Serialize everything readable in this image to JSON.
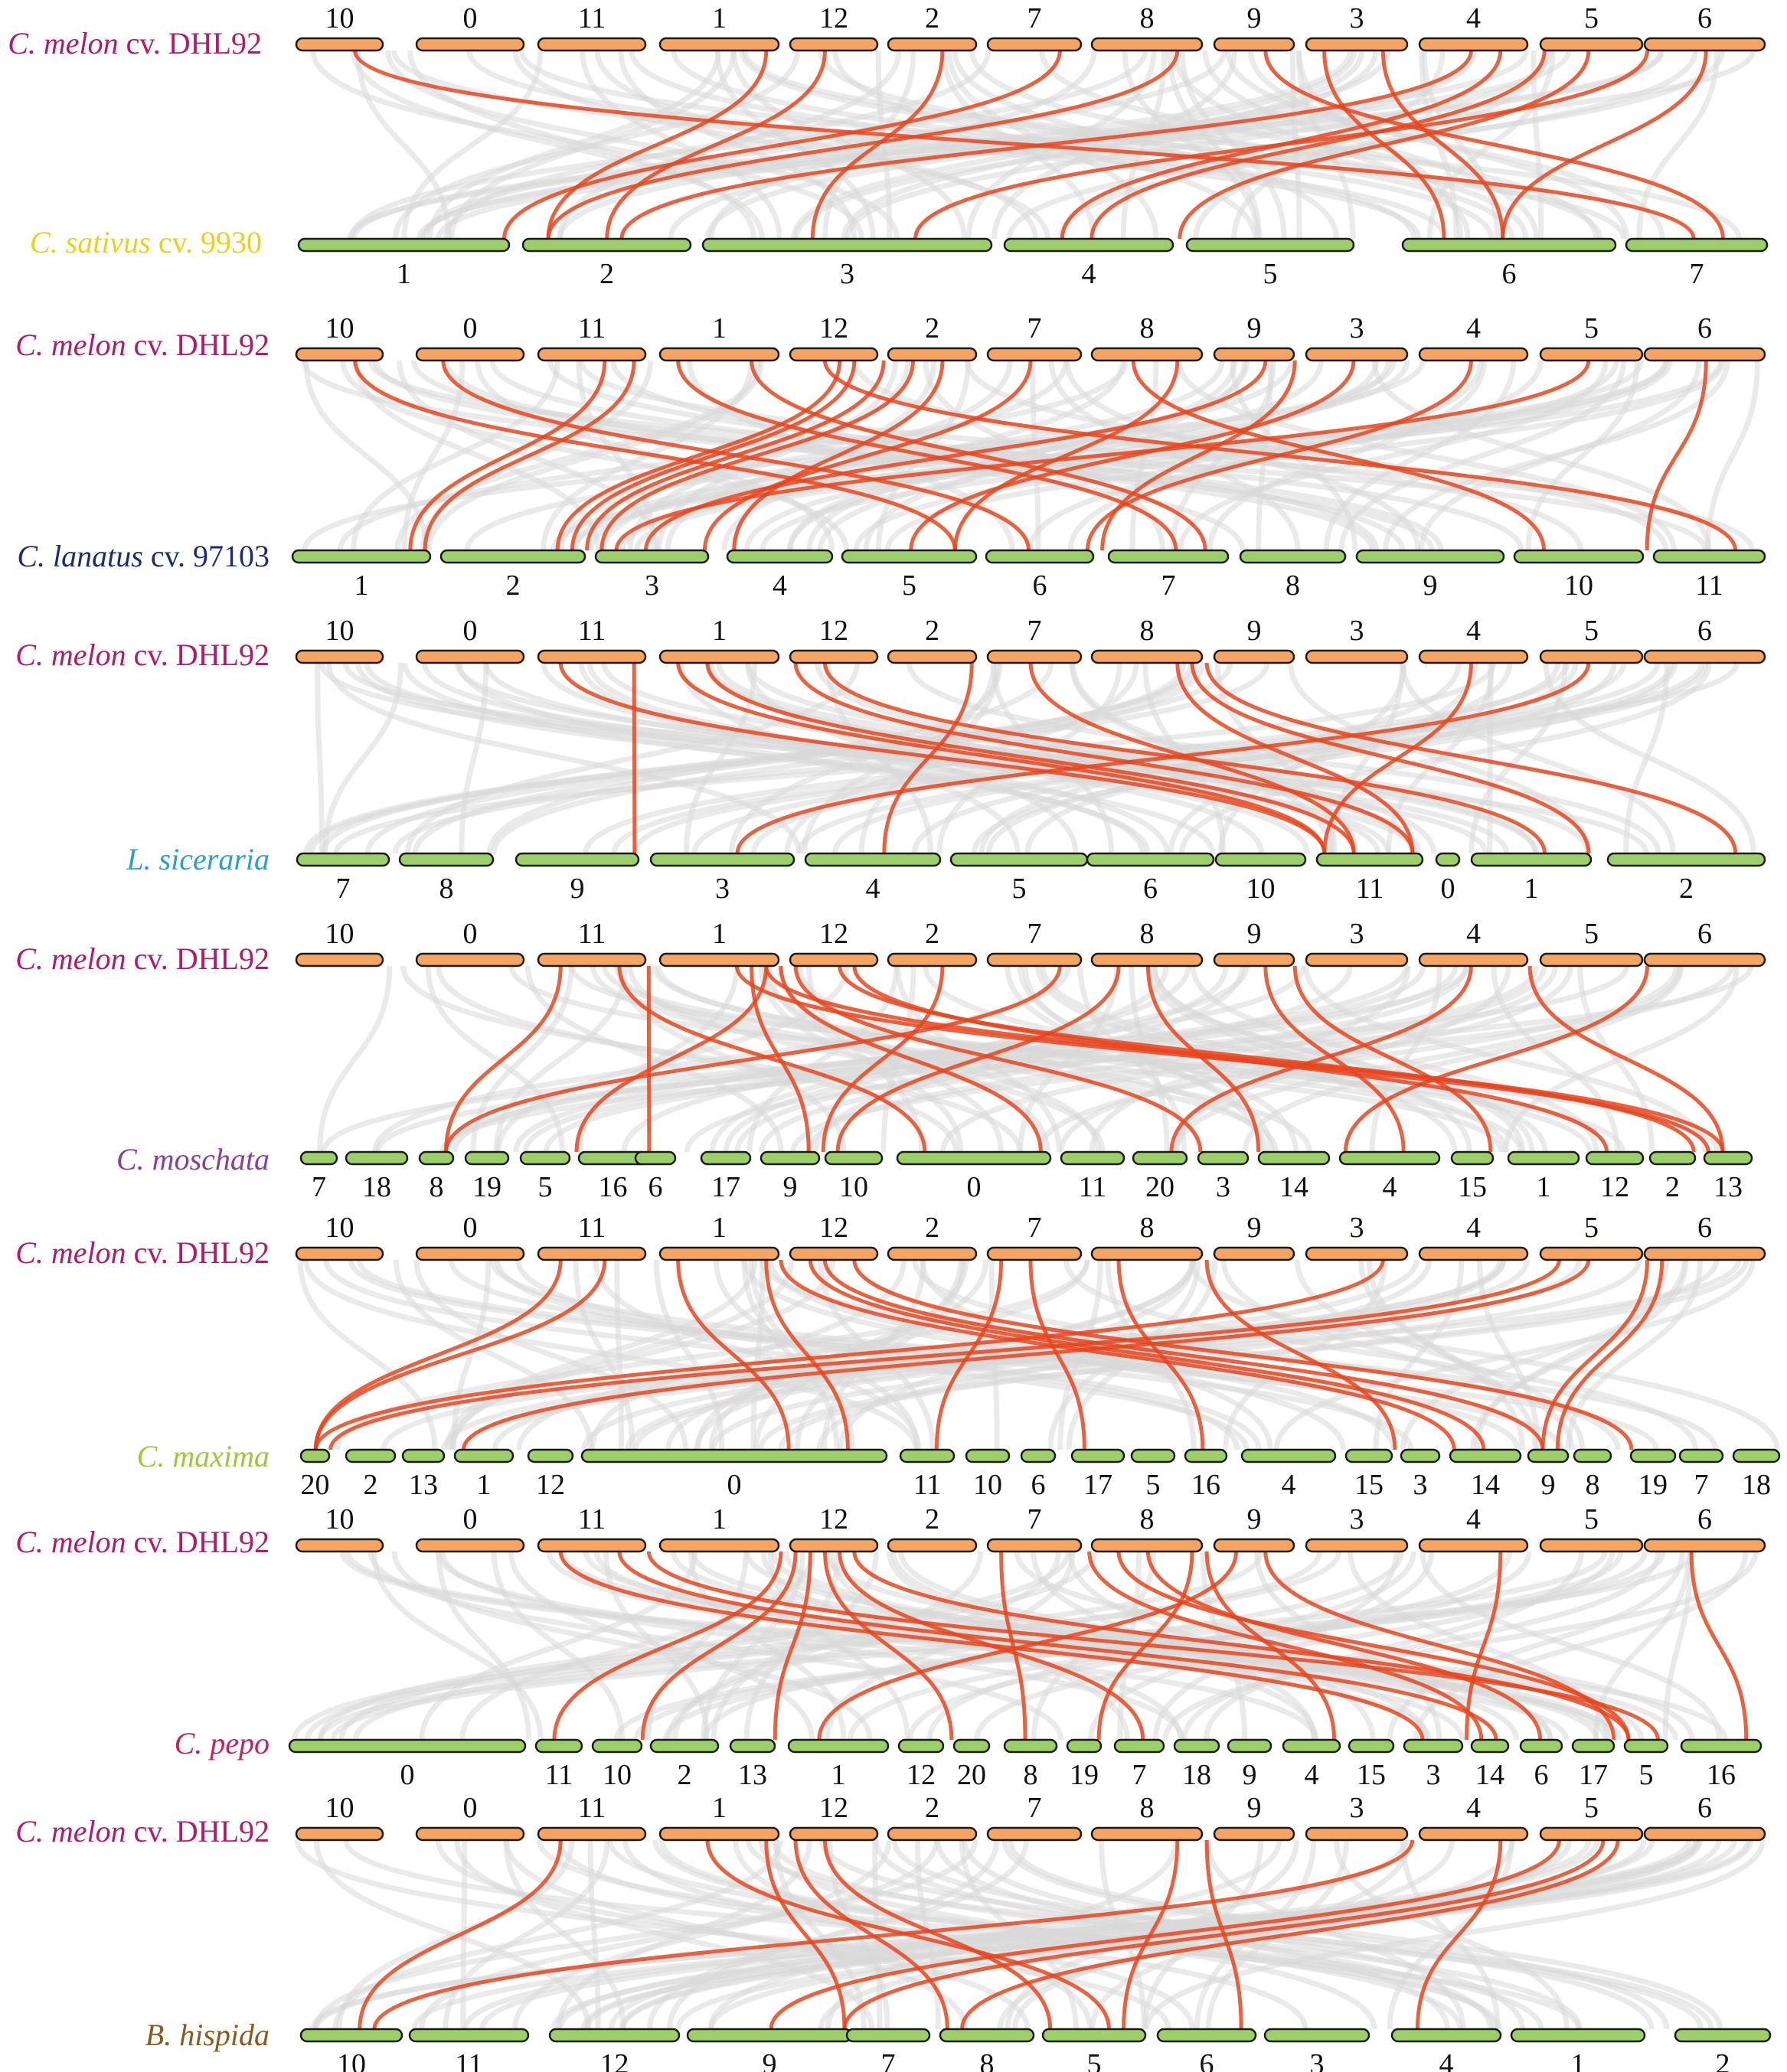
{
  "colors": {
    "melon_chrom": "#f5a462",
    "target_chrom": "#9ccf6a",
    "outline": "#1a1a1a",
    "red_link": "#e8441d",
    "grey_link": "#d9d9d9"
  },
  "panels": [
    {
      "top": {
        "italic": "C. melon",
        "rest": " cv. DHL92",
        "color": "#b5196a",
        "chroms": [
          "10",
          "0",
          "11",
          "1",
          "12",
          "2",
          "7",
          "8",
          "9",
          "3",
          "4",
          "5",
          "6"
        ]
      },
      "bottom": {
        "italic": "C. sativus",
        "rest": " cv. 9930",
        "color": "#e8d21c",
        "chroms": [
          "1",
          "2",
          "3",
          "4",
          "5",
          "6",
          "7"
        ]
      }
    },
    {
      "top": {
        "italic": "C. melon",
        "rest": " cv. DHL92",
        "color": "#b5196a",
        "chroms": [
          "10",
          "0",
          "11",
          "1",
          "12",
          "2",
          "7",
          "8",
          "9",
          "3",
          "4",
          "5",
          "6"
        ]
      },
      "bottom": {
        "italic": "C. lanatus",
        "rest": " cv. 97103",
        "color": "#1d2a7a",
        "chroms": [
          "1",
          "2",
          "3",
          "4",
          "5",
          "6",
          "7",
          "8",
          "9",
          "10",
          "11"
        ]
      }
    },
    {
      "top": {
        "italic": "C. melon",
        "rest": " cv. DHL92",
        "color": "#b5196a",
        "chroms": [
          "10",
          "0",
          "11",
          "1",
          "12",
          "2",
          "7",
          "8",
          "9",
          "3",
          "4",
          "5",
          "6"
        ]
      },
      "bottom": {
        "italic": "L. siceraria",
        "rest": "",
        "color": "#2a9fd0",
        "chroms": [
          "7",
          "8",
          "9",
          "3",
          "4",
          "5",
          "6",
          "10",
          "11",
          "0",
          "1",
          "2"
        ]
      }
    },
    {
      "top": {
        "italic": "C. melon",
        "rest": " cv. DHL92",
        "color": "#b5196a",
        "chroms": [
          "10",
          "0",
          "11",
          "1",
          "12",
          "2",
          "7",
          "8",
          "9",
          "3",
          "4",
          "5",
          "6"
        ]
      },
      "bottom": {
        "italic": "C. moschata",
        "rest": "",
        "color": "#8a3ea0",
        "chroms": [
          "7",
          "18",
          "8",
          "19",
          "5",
          "16",
          "6",
          "17",
          "9",
          "10",
          "0",
          "11",
          "20",
          "3",
          "14",
          "4",
          "15",
          "1",
          "12",
          "2",
          "13"
        ]
      }
    },
    {
      "top": {
        "italic": "C. melon",
        "rest": " cv. DHL92",
        "color": "#b5196a",
        "chroms": [
          "10",
          "0",
          "11",
          "1",
          "12",
          "2",
          "7",
          "8",
          "9",
          "3",
          "4",
          "5",
          "6"
        ]
      },
      "bottom": {
        "italic": "C. maxima",
        "rest": "",
        "color": "#9cc93a",
        "chroms": [
          "20",
          "2",
          "13",
          "1",
          "12",
          "0",
          "11",
          "10",
          "6",
          "17",
          "5",
          "16",
          "4",
          "15",
          "3",
          "14",
          "9",
          "8",
          "19",
          "7",
          "18"
        ]
      }
    },
    {
      "top": {
        "italic": "C. melon",
        "rest": " cv. DHL92",
        "color": "#b5196a",
        "chroms": [
          "10",
          "0",
          "11",
          "1",
          "12",
          "2",
          "7",
          "8",
          "9",
          "3",
          "4",
          "5",
          "6"
        ]
      },
      "bottom": {
        "italic": "C. pepo",
        "rest": "",
        "color": "#c8205c",
        "chroms": [
          "0",
          "11",
          "10",
          "2",
          "13",
          "1",
          "12",
          "20",
          "8",
          "19",
          "7",
          "18",
          "9",
          "4",
          "15",
          "3",
          "14",
          "6",
          "17",
          "5",
          "16"
        ]
      }
    },
    {
      "top": {
        "italic": "C. melon",
        "rest": " cv. DHL92",
        "color": "#b5196a",
        "chroms": [
          "10",
          "0",
          "11",
          "1",
          "12",
          "2",
          "7",
          "8",
          "9",
          "3",
          "4",
          "5",
          "6"
        ]
      },
      "bottom": {
        "italic": "B. hispida",
        "rest": "",
        "color": "#8a5a1e",
        "chroms": [
          "10",
          "11",
          "12",
          "9",
          "7",
          "8",
          "5",
          "6",
          "3",
          "4",
          "1",
          "2"
        ]
      }
    }
  ]
}
